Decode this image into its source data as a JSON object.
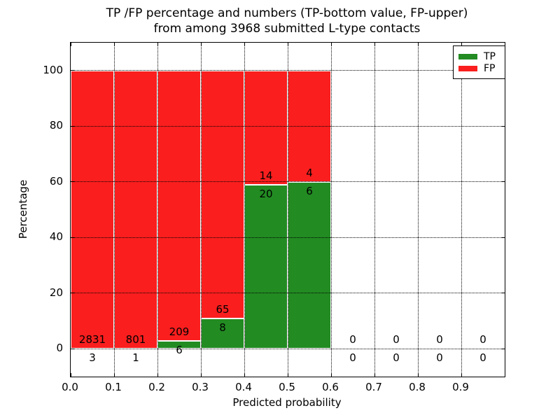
{
  "chart_data": {
    "type": "bar",
    "subtype": "stacked-100-percent",
    "title": "TP /FP percentage and numbers (TP-bottom value, FP-upper) from among 3968 submitted L-type contacts",
    "title_lines": [
      "TP /FP percentage and numbers (TP-bottom value, FP-upper)",
      "from among 3968 submitted L-type contacts"
    ],
    "xlabel": "Predicted probability",
    "ylabel": "Percentage",
    "xlim": [
      0.0,
      1.0
    ],
    "ylim": [
      -10,
      110
    ],
    "grid": "dotted",
    "bin_width": 0.1,
    "bin_starts": [
      0.0,
      0.1,
      0.2,
      0.3,
      0.4,
      0.5,
      0.6,
      0.7,
      0.8,
      0.9
    ],
    "categories": [
      "0.0-0.1",
      "0.1-0.2",
      "0.2-0.3",
      "0.3-0.4",
      "0.4-0.5",
      "0.5-0.6",
      "0.6-0.7",
      "0.7-0.8",
      "0.8-0.9",
      "0.9-1.0"
    ],
    "series": [
      {
        "name": "TP",
        "color": "#228b22",
        "counts": [
          3,
          1,
          6,
          8,
          20,
          6,
          0,
          0,
          0,
          0
        ]
      },
      {
        "name": "FP",
        "color": "#fa1e1e",
        "counts": [
          2831,
          801,
          209,
          65,
          14,
          4,
          0,
          0,
          0,
          0
        ]
      }
    ],
    "tp_percent": [
      0.106,
      0.125,
      2.791,
      10.959,
      58.824,
      60.0,
      0,
      0,
      0,
      0
    ],
    "total_contacts": 3968,
    "xtick_labels": [
      "0.0",
      "0.1",
      "0.2",
      "0.3",
      "0.4",
      "0.5",
      "0.6",
      "0.7",
      "0.8",
      "0.9"
    ],
    "xtick_values": [
      0.0,
      0.1,
      0.2,
      0.3,
      0.4,
      0.5,
      0.6,
      0.7,
      0.8,
      0.9
    ],
    "ytick_labels": [
      "0",
      "20",
      "40",
      "60",
      "80",
      "100"
    ],
    "ytick_values": [
      0,
      20,
      40,
      60,
      80,
      100
    ],
    "legend": {
      "position": "upper right",
      "entries": [
        {
          "label": "TP",
          "color": "#228b22"
        },
        {
          "label": "FP",
          "color": "#fa1e1e"
        }
      ]
    }
  }
}
